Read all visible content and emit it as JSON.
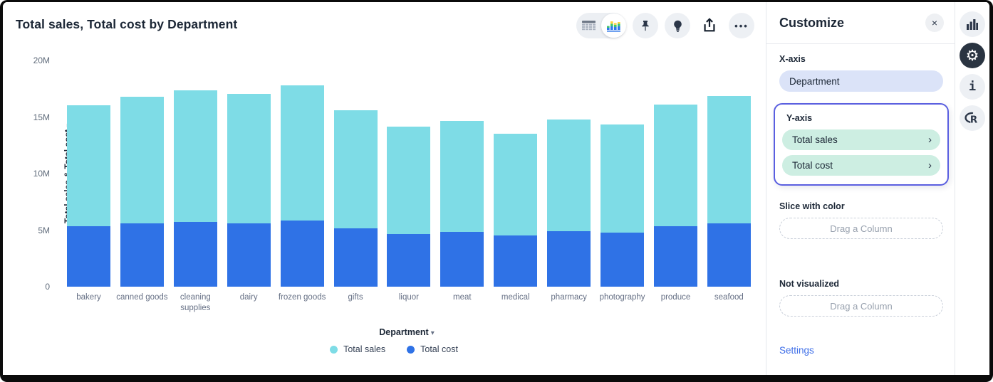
{
  "chart": {
    "title": "Total sales, Total cost by Department",
    "y_axis_title": "Total sales & Total cost",
    "x_axis_name": "Department"
  },
  "chart_data": {
    "type": "bar",
    "stacked": true,
    "title": "Total sales, Total cost by Department",
    "xlabel": "Department",
    "ylabel": "Total sales & Total cost",
    "categories": [
      "bakery",
      "canned goods",
      "cleaning supplies",
      "dairy",
      "frozen goods",
      "gifts",
      "liquor",
      "meat",
      "medical",
      "pharmacy",
      "photography",
      "produce",
      "seafood"
    ],
    "series": [
      {
        "name": "Total sales",
        "color": "#7edce6",
        "stack_position": "top",
        "values_m": [
          10.7,
          11.2,
          11.6,
          11.45,
          11.9,
          10.45,
          9.5,
          9.8,
          9.0,
          9.9,
          9.55,
          10.75,
          11.25
        ]
      },
      {
        "name": "Total cost",
        "color": "#2f72e6",
        "stack_position": "bottom",
        "values_m": [
          5.36,
          5.58,
          5.74,
          5.58,
          5.87,
          5.16,
          4.63,
          4.84,
          4.53,
          4.91,
          4.78,
          5.35,
          5.6
        ]
      }
    ],
    "legend_order": [
      "Total sales",
      "Total cost"
    ],
    "legend_position": "bottom",
    "ylim_m": [
      0,
      20
    ],
    "yticks_m": [
      0,
      5,
      10,
      15,
      20
    ],
    "ytick_labels": [
      "0",
      "5M",
      "10M",
      "15M",
      "20M"
    ],
    "grid": false,
    "values_unit": "millions"
  },
  "toolbar": {
    "icons": [
      "table-view",
      "chart-view",
      "pin",
      "lightbulb",
      "share",
      "more-options"
    ]
  },
  "panel": {
    "title": "Customize",
    "x_axis": {
      "label": "X-axis",
      "value": "Department"
    },
    "y_axis": {
      "label": "Y-axis",
      "values": [
        "Total sales",
        "Total cost"
      ]
    },
    "slice": {
      "label": "Slice with color",
      "placeholder": "Drag a Column"
    },
    "not_visualized": {
      "label": "Not visualized",
      "placeholder": "Drag a Column"
    },
    "settings_label": "Settings"
  },
  "rail": {
    "icons": [
      "bar-chart",
      "gear",
      "info",
      "r-logo"
    ]
  },
  "icons": {
    "close": "×",
    "chevron": "›",
    "caret": "▾",
    "gear": "⚙",
    "info": "i",
    "r_logo": "R",
    "ellipsis": "•••"
  }
}
